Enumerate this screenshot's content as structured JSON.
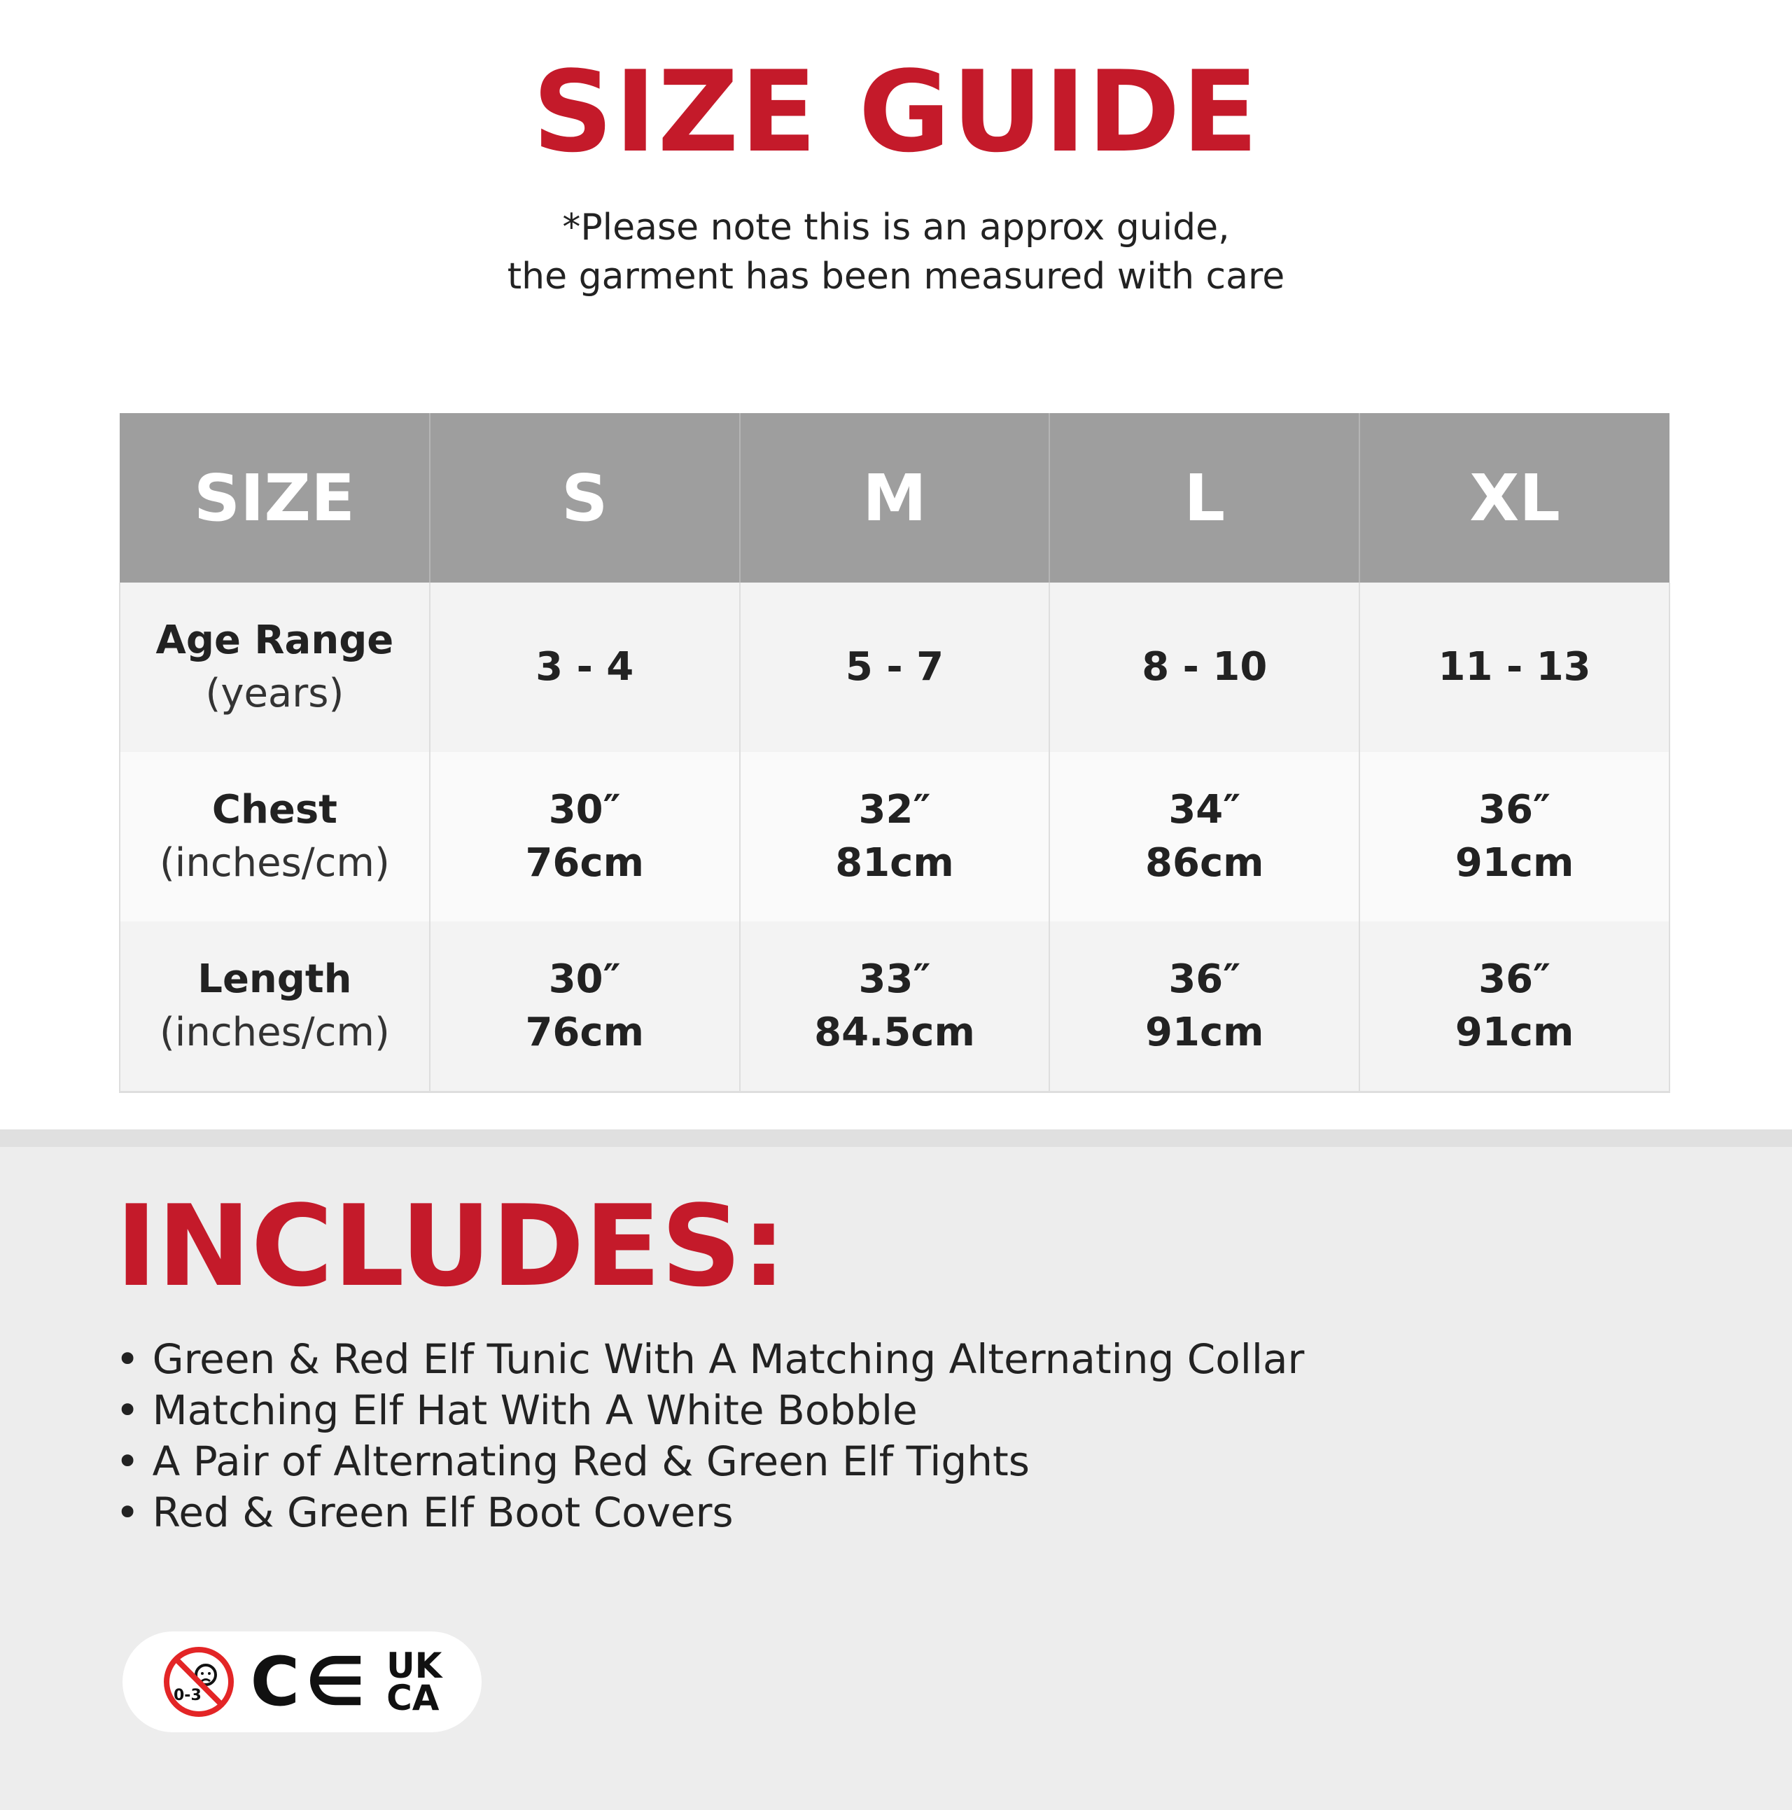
{
  "title": "SIZE GUIDE",
  "note": [
    "*Please note this is an approx guide,",
    "the garment has been measured with care"
  ],
  "table": {
    "headers": [
      "SIZE",
      "S",
      "M",
      "L",
      "XL"
    ],
    "rows": [
      {
        "label": "Age Range",
        "unit": "(years)",
        "values": [
          [
            "3 - 4"
          ],
          [
            "5 - 7"
          ],
          [
            "8 - 10"
          ],
          [
            "11 - 13"
          ]
        ]
      },
      {
        "label": "Chest",
        "unit": "(inches/cm)",
        "values": [
          [
            "30″",
            "76cm"
          ],
          [
            "32″",
            "81cm"
          ],
          [
            "34″",
            "86cm"
          ],
          [
            "36″",
            "91cm"
          ]
        ]
      },
      {
        "label": "Length",
        "unit": "(inches/cm)",
        "values": [
          [
            "30″",
            "76cm"
          ],
          [
            "33″",
            "84.5cm"
          ],
          [
            "36″",
            "91cm"
          ],
          [
            "36″",
            "91cm"
          ]
        ]
      }
    ]
  },
  "includes": {
    "title": "INCLUDES:",
    "items": [
      "Green & Red Elf Tunic With A Matching Alternating Collar",
      "Matching Elf Hat With A White Bobble",
      "A Pair of Alternating Red & Green Elf Tights",
      "Red & Green Elf Boot Covers"
    ]
  },
  "badges": {
    "age_warning": "0-3",
    "ce": "CE",
    "ukca": [
      "UK",
      "CA"
    ]
  },
  "colors": {
    "accent": "#c41a2a",
    "header": "#9e9e9e"
  }
}
